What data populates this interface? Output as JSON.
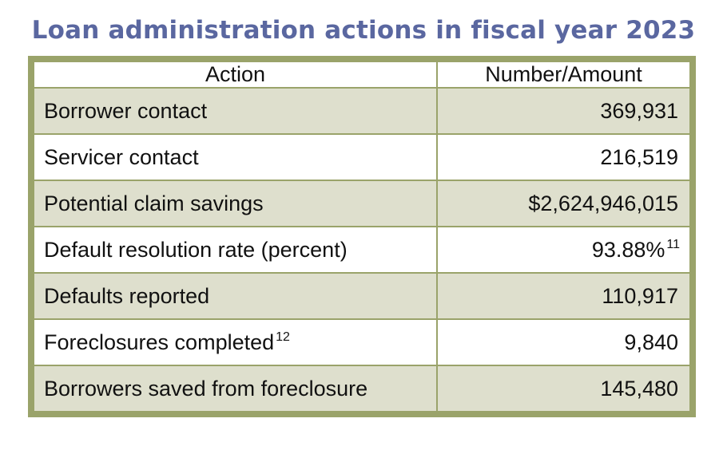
{
  "title": "Loan administration actions in fiscal year 2023",
  "table": {
    "headers": [
      "Action",
      "Number/Amount"
    ],
    "rows": [
      {
        "action": "Borrower contact",
        "action_note": "",
        "value": "369,931",
        "value_note": ""
      },
      {
        "action": "Servicer contact",
        "action_note": "",
        "value": "216,519",
        "value_note": ""
      },
      {
        "action": "Potential claim savings",
        "action_note": "",
        "value": "$2,624,946,015",
        "value_note": ""
      },
      {
        "action": "Default resolution rate (percent)",
        "action_note": "",
        "value": "93.88%",
        "value_note": "11"
      },
      {
        "action": "Defaults reported",
        "action_note": "",
        "value": "110,917",
        "value_note": ""
      },
      {
        "action": "Foreclosures completed",
        "action_note": "12",
        "value": "9,840",
        "value_note": ""
      },
      {
        "action": "Borrowers saved from foreclosure",
        "action_note": "",
        "value": "145,480",
        "value_note": ""
      }
    ]
  },
  "colors": {
    "title": "#5a67a0",
    "border": "#9aa36a",
    "shaded_row": "#dedfcd",
    "plain_row": "#ffffff"
  }
}
